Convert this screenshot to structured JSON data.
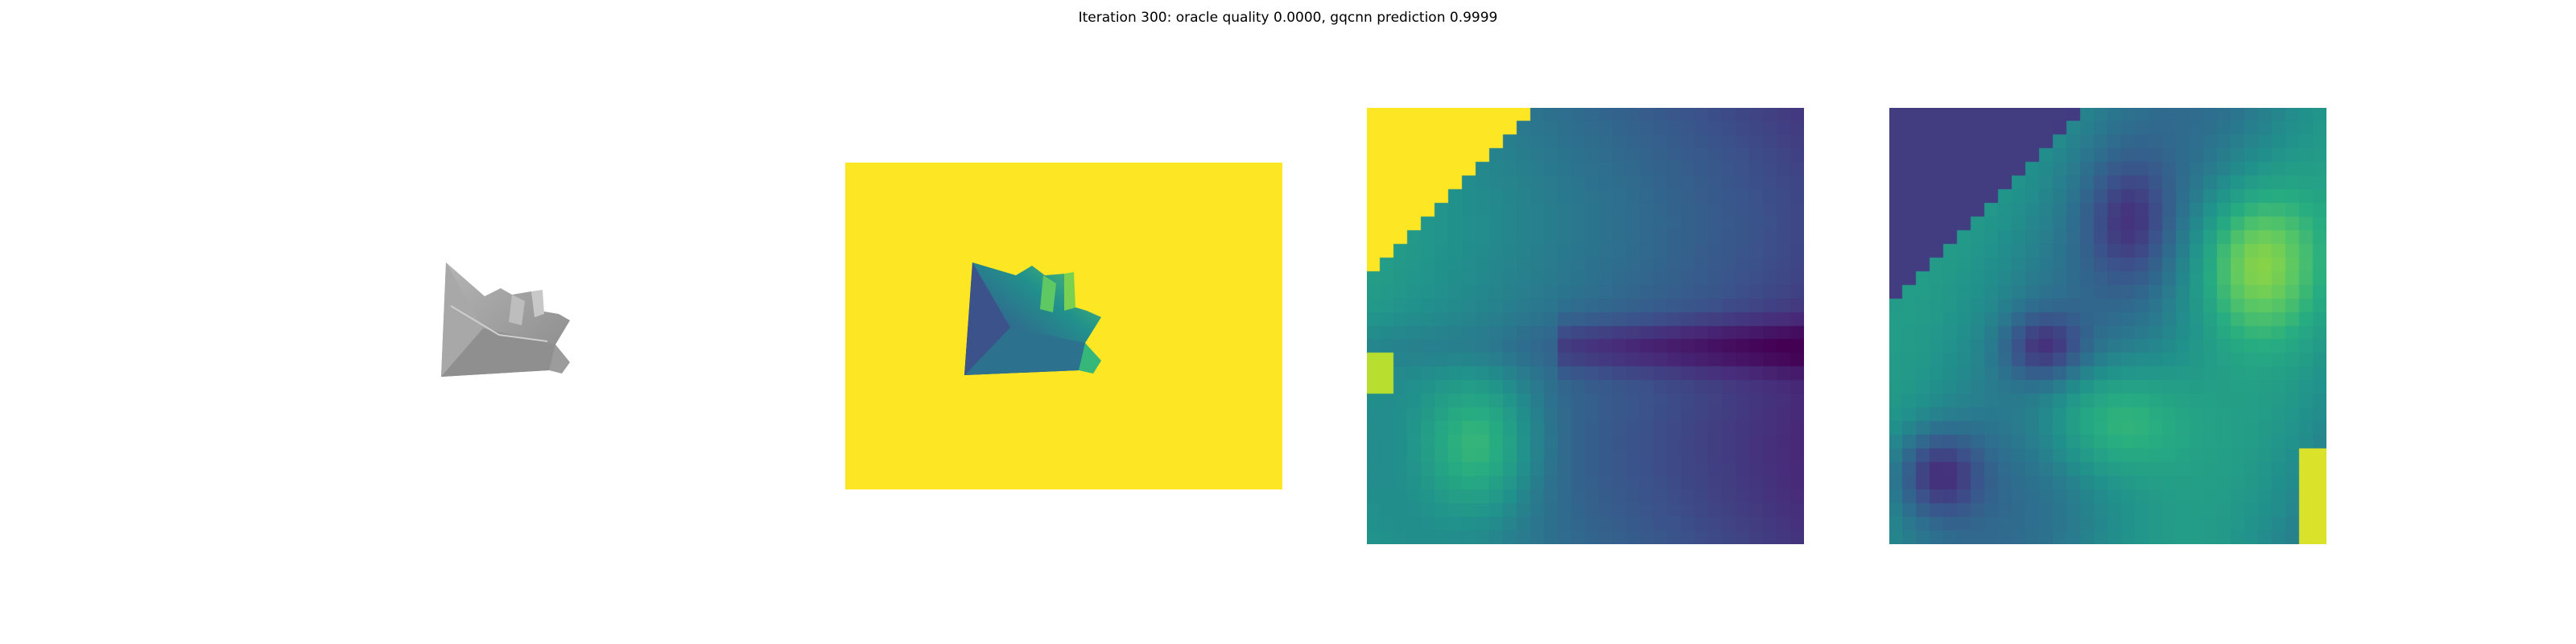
{
  "figure": {
    "title": "Iteration 300: oracle quality 0.0000, gqcnn prediction 0.9999"
  },
  "panels": {
    "rendered_object": {
      "colormap": "gray",
      "background": "#ffffff"
    },
    "depth_image": {
      "colormap": "viridis",
      "background": "#fde725"
    },
    "depth_crop": {
      "colormap": "viridis",
      "grid": 32
    },
    "depth_crop_2": {
      "colormap": "viridis",
      "grid": 32
    }
  },
  "colors": {
    "viridis_dark": "#440154",
    "viridis_mid": "#21918c",
    "viridis_green": "#5ec962",
    "viridis_yellow": "#fde725",
    "object_gray": "#9a9a9a"
  }
}
